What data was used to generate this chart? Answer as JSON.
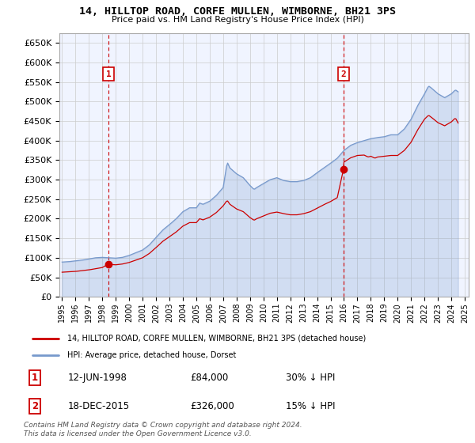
{
  "title": "14, HILLTOP ROAD, CORFE MULLEN, WIMBORNE, BH21 3PS",
  "subtitle": "Price paid vs. HM Land Registry's House Price Index (HPI)",
  "sale1_date": "12-JUN-1998",
  "sale1_price": 84000,
  "sale1_label": "30% ↓ HPI",
  "sale2_date": "18-DEC-2015",
  "sale2_price": 326000,
  "sale2_label": "15% ↓ HPI",
  "legend_line1": "14, HILLTOP ROAD, CORFE MULLEN, WIMBORNE, BH21 3PS (detached house)",
  "legend_line2": "HPI: Average price, detached house, Dorset",
  "footer": "Contains HM Land Registry data © Crown copyright and database right 2024.\nThis data is licensed under the Open Government Licence v3.0.",
  "red_color": "#cc0000",
  "blue_color": "#7799cc",
  "fill_color": "#ddeeff",
  "bg_color": "#f0f4ff",
  "ylim": [
    0,
    675000
  ],
  "yticks": [
    0,
    50000,
    100000,
    150000,
    200000,
    250000,
    300000,
    350000,
    400000,
    450000,
    500000,
    550000,
    600000,
    650000
  ],
  "xlim_start": 1994.8,
  "xlim_end": 2025.3,
  "sale1_x": 1998.45,
  "sale2_x": 2015.96
}
